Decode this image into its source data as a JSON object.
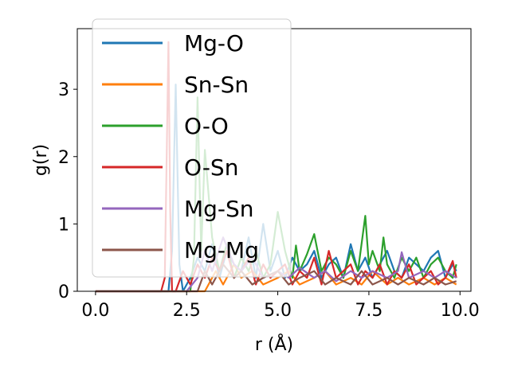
{
  "chart_data": {
    "type": "line",
    "xlabel": "r (Å)",
    "ylabel": "g(r)",
    "xlim": [
      -0.5,
      10.3
    ],
    "ylim": [
      0,
      3.9
    ],
    "xticks": [
      "0.0",
      "2.5",
      "5.0",
      "7.5",
      "10.0"
    ],
    "yticks": [
      "0",
      "1",
      "2",
      "3"
    ],
    "grid": false,
    "legend_position": "upper-left",
    "series": [
      {
        "name": "Mg-O",
        "color": "#1f77b4",
        "x": [
          0,
          1.9,
          2.0,
          2.1,
          2.2,
          2.3,
          2.4,
          2.6,
          2.8,
          3.0,
          3.2,
          3.4,
          3.6,
          3.8,
          4.0,
          4.2,
          4.4,
          4.6,
          4.8,
          5.0,
          5.2,
          5.4,
          5.6,
          5.8,
          6.0,
          6.2,
          6.4,
          6.6,
          6.8,
          7.0,
          7.2,
          7.4,
          7.6,
          7.8,
          8.0,
          8.2,
          8.4,
          8.6,
          8.8,
          9.0,
          9.2,
          9.4,
          9.6,
          9.8,
          9.9
        ],
        "y": [
          0,
          0,
          0,
          0.6,
          3.07,
          0.4,
          0,
          0.2,
          0.5,
          0.3,
          0.7,
          0.2,
          0.6,
          0.4,
          0.3,
          0.8,
          0.2,
          1.0,
          0.3,
          0.6,
          0.2,
          0.5,
          0.3,
          0.4,
          0.6,
          0.2,
          0.4,
          0.5,
          0.2,
          0.7,
          0.3,
          0.5,
          0.2,
          0.4,
          0.6,
          0.3,
          0.2,
          0.5,
          0.4,
          0.3,
          0.5,
          0.6,
          0.2,
          0.4,
          0.3
        ]
      },
      {
        "name": "Sn-Sn",
        "color": "#ff7f0e",
        "x": [
          0,
          3.0,
          3.3,
          3.5,
          3.8,
          4.0,
          4.3,
          4.6,
          5.0,
          5.3,
          5.6,
          6.0,
          6.3,
          6.6,
          7.0,
          7.3,
          7.6,
          8.0,
          8.3,
          8.6,
          9.0,
          9.3,
          9.6,
          9.9
        ],
        "y": [
          0,
          0,
          0.3,
          0.1,
          0.4,
          0.2,
          0.3,
          0.1,
          0.2,
          0.3,
          0.1,
          0.2,
          0.3,
          0.1,
          0.2,
          0.1,
          0.3,
          0.1,
          0.2,
          0.1,
          0.2,
          0.1,
          0.2,
          0.1
        ]
      },
      {
        "name": "O-O",
        "color": "#2ca02c",
        "x": [
          0,
          2.6,
          2.7,
          2.8,
          2.9,
          3.0,
          3.2,
          3.4,
          3.6,
          3.8,
          4.0,
          4.2,
          4.4,
          4.6,
          4.8,
          5.0,
          5.2,
          5.4,
          5.5,
          5.6,
          5.8,
          6.0,
          6.2,
          6.4,
          6.6,
          6.8,
          7.0,
          7.2,
          7.4,
          7.5,
          7.6,
          7.8,
          7.9,
          8.0,
          8.2,
          8.4,
          8.6,
          8.8,
          9.0,
          9.2,
          9.4,
          9.6,
          9.8,
          9.9
        ],
        "y": [
          0,
          0,
          0.5,
          2.88,
          0.6,
          2.1,
          0.8,
          0.3,
          0.7,
          0.2,
          0.5,
          0.3,
          0.6,
          0.2,
          0.4,
          1.18,
          0.6,
          0.2,
          0.68,
          0.3,
          0.55,
          0.85,
          0.3,
          0.5,
          0.4,
          0.2,
          0.6,
          0.3,
          1.12,
          0.4,
          0.6,
          0.3,
          0.8,
          0.4,
          0.2,
          0.5,
          0.3,
          0.5,
          0.2,
          0.4,
          0.5,
          0.3,
          0.2,
          0.4
        ]
      },
      {
        "name": "O-Sn",
        "color": "#d62728",
        "x": [
          0,
          1.8,
          1.9,
          2.0,
          2.05,
          2.1,
          2.2,
          2.4,
          2.6,
          2.8,
          3.0,
          3.2,
          3.4,
          3.6,
          3.8,
          4.0,
          4.2,
          4.4,
          4.6,
          4.8,
          5.0,
          5.2,
          5.4,
          5.6,
          5.8,
          6.0,
          6.2,
          6.4,
          6.6,
          6.8,
          7.0,
          7.2,
          7.4,
          7.6,
          7.8,
          8.0,
          8.2,
          8.4,
          8.6,
          8.8,
          9.0,
          9.2,
          9.4,
          9.6,
          9.8,
          9.9
        ],
        "y": [
          0,
          0,
          0.2,
          3.7,
          1.2,
          0,
          0,
          0.3,
          0.1,
          0.4,
          0.2,
          0.5,
          0.3,
          0.6,
          0.2,
          0.3,
          0.5,
          0.1,
          0.4,
          0.2,
          0.3,
          0.4,
          0.1,
          0.3,
          0.2,
          0.5,
          0.1,
          0.6,
          0.2,
          0.3,
          0.4,
          0.1,
          0.3,
          0.2,
          0.4,
          0.1,
          0.3,
          0.2,
          0.4,
          0.1,
          0.2,
          0.3,
          0.1,
          0.2,
          0.45,
          0.2
        ]
      },
      {
        "name": "Mg-Sn",
        "color": "#9467bd",
        "x": [
          0,
          2.5,
          2.8,
          3.0,
          3.2,
          3.5,
          3.8,
          4.0,
          4.3,
          4.6,
          5.0,
          5.3,
          5.6,
          6.0,
          6.3,
          6.6,
          7.0,
          7.3,
          7.6,
          8.0,
          8.3,
          8.4,
          8.6,
          9.0,
          9.3,
          9.6,
          9.9
        ],
        "y": [
          0,
          0,
          0.2,
          0.6,
          0.3,
          0.8,
          0.4,
          0.3,
          0.5,
          0.2,
          0.3,
          0.2,
          0.35,
          0.2,
          0.3,
          0.15,
          0.3,
          0.2,
          0.3,
          0.2,
          0.3,
          0.58,
          0.2,
          0.3,
          0.2,
          0.3,
          0.2
        ]
      },
      {
        "name": "Mg-Mg",
        "color": "#8c564b",
        "x": [
          0,
          2.8,
          3.0,
          3.2,
          3.5,
          3.8,
          4.0,
          4.3,
          4.6,
          5.0,
          5.3,
          5.6,
          6.0,
          6.3,
          6.6,
          7.0,
          7.3,
          7.6,
          8.0,
          8.3,
          8.6,
          9.0,
          9.3,
          9.6,
          9.9
        ],
        "y": [
          0,
          0,
          0.3,
          0.1,
          0.4,
          0.2,
          0.3,
          0.1,
          0.2,
          0.3,
          0.1,
          0.2,
          0.3,
          0.1,
          0.2,
          0.1,
          0.3,
          0.1,
          0.2,
          0.1,
          0.2,
          0.1,
          0.2,
          0.1,
          0.15
        ]
      }
    ]
  }
}
